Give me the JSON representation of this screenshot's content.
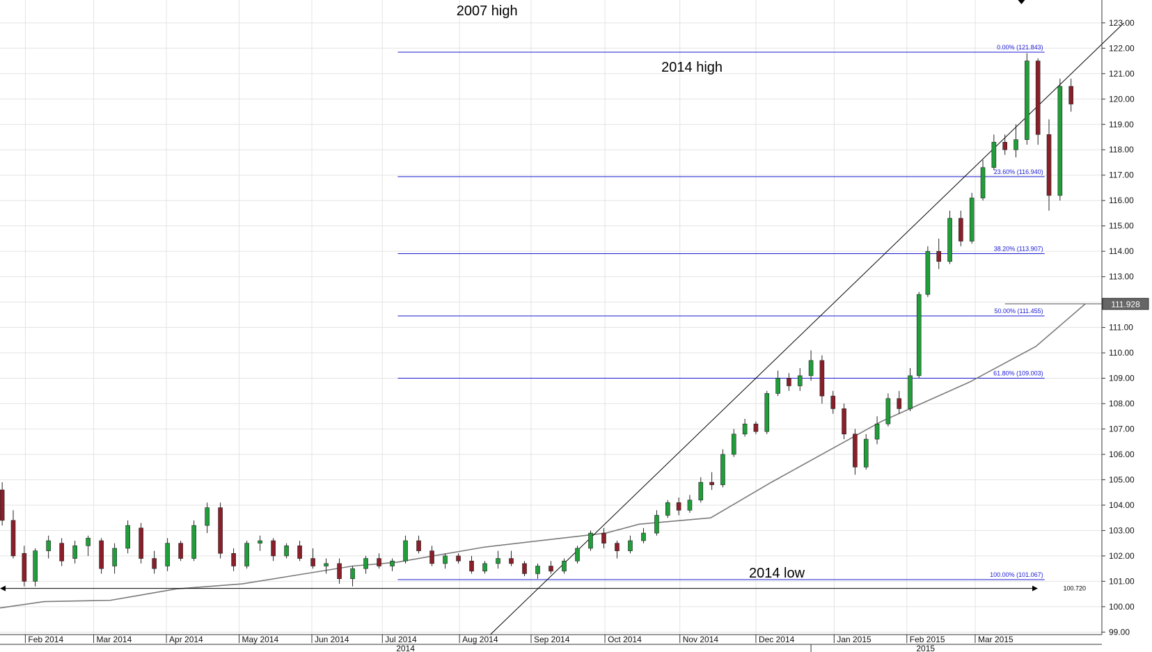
{
  "chart_data": {
    "type": "candlestick",
    "y_axis": {
      "ticks": [
        "99.00",
        "100.00",
        "101.00",
        "102.00",
        "103.00",
        "104.00",
        "105.00",
        "106.00",
        "107.00",
        "108.00",
        "109.00",
        "110.00",
        "111.00",
        "112.00",
        "113.00",
        "114.00",
        "115.00",
        "116.00",
        "117.00",
        "118.00",
        "119.00",
        "120.00",
        "121.00",
        "122.00",
        "123.00"
      ],
      "range": [
        98.9,
        123.9
      ]
    },
    "x_axis": {
      "month_labels": [
        "Feb 2014",
        "Mar 2014",
        "Apr 2014",
        "May 2014",
        "Jun 2014",
        "Jul 2014",
        "Aug 2014",
        "Sep 2014",
        "Oct 2014",
        "Nov 2014",
        "Dec 2014",
        "Jan 2015",
        "Feb 2015",
        "Mar 2015"
      ],
      "year_labels": [
        "2014",
        "2015"
      ]
    },
    "annotations": [
      {
        "id": "high2007",
        "text": "2007 high"
      },
      {
        "id": "high2014",
        "text": "2014 high"
      },
      {
        "id": "low2014",
        "text": "2014 low"
      }
    ],
    "fibonacci": [
      {
        "label": "0.00% (121.843)",
        "value": 121.843
      },
      {
        "label": "23.60% (116.940)",
        "value": 116.94
      },
      {
        "label": "38.20% (113.907)",
        "value": 113.907
      },
      {
        "label": "50.00% (111.455)",
        "value": 111.455
      },
      {
        "label": "61.80% (109.003)",
        "value": 109.003
      },
      {
        "label": "100.00% (101.067)",
        "value": 101.067
      }
    ],
    "support_line": {
      "value": 100.72,
      "label": "100.720"
    },
    "last_price": {
      "value": 111.928,
      "label": "111.928"
    },
    "moving_average": [
      {
        "x": 0,
        "y": 99.95
      },
      {
        "x": 0.04,
        "y": 100.2
      },
      {
        "x": 0.1,
        "y": 100.25
      },
      {
        "x": 0.12,
        "y": 100.4
      },
      {
        "x": 0.16,
        "y": 100.7
      },
      {
        "x": 0.22,
        "y": 100.9
      },
      {
        "x": 0.27,
        "y": 101.25
      },
      {
        "x": 0.32,
        "y": 101.6
      },
      {
        "x": 0.36,
        "y": 101.75
      },
      {
        "x": 0.44,
        "y": 102.35
      },
      {
        "x": 0.5,
        "y": 102.65
      },
      {
        "x": 0.55,
        "y": 102.9
      },
      {
        "x": 0.58,
        "y": 103.25
      },
      {
        "x": 0.645,
        "y": 103.5
      },
      {
        "x": 0.7,
        "y": 104.9
      },
      {
        "x": 0.75,
        "y": 106.1
      },
      {
        "x": 0.8,
        "y": 107.3
      },
      {
        "x": 0.88,
        "y": 108.85
      },
      {
        "x": 0.94,
        "y": 110.25
      },
      {
        "x": 0.985,
        "y": 111.93
      }
    ],
    "trendline": {
      "from": {
        "x": 0.445,
        "y": 98.9
      },
      "to": {
        "x": 1.02,
        "y": 123.0
      }
    },
    "candles": [
      {
        "x": 0.002,
        "o": 104.6,
        "h": 104.9,
        "l": 103.2,
        "c": 103.4
      },
      {
        "x": 0.012,
        "o": 103.4,
        "h": 103.8,
        "l": 101.9,
        "c": 102.0
      },
      {
        "x": 0.022,
        "o": 102.1,
        "h": 102.4,
        "l": 100.8,
        "c": 101.0
      },
      {
        "x": 0.032,
        "o": 101.0,
        "h": 102.3,
        "l": 100.8,
        "c": 102.2
      },
      {
        "x": 0.044,
        "o": 102.2,
        "h": 102.8,
        "l": 101.9,
        "c": 102.6
      },
      {
        "x": 0.056,
        "o": 102.5,
        "h": 102.7,
        "l": 101.6,
        "c": 101.8
      },
      {
        "x": 0.068,
        "o": 101.9,
        "h": 102.6,
        "l": 101.7,
        "c": 102.4
      },
      {
        "x": 0.08,
        "o": 102.4,
        "h": 102.8,
        "l": 102.0,
        "c": 102.7
      },
      {
        "x": 0.092,
        "o": 102.6,
        "h": 102.7,
        "l": 101.3,
        "c": 101.5
      },
      {
        "x": 0.104,
        "o": 101.6,
        "h": 102.5,
        "l": 101.3,
        "c": 102.3
      },
      {
        "x": 0.116,
        "o": 102.3,
        "h": 103.4,
        "l": 102.1,
        "c": 103.2
      },
      {
        "x": 0.128,
        "o": 103.1,
        "h": 103.3,
        "l": 101.7,
        "c": 101.9
      },
      {
        "x": 0.14,
        "o": 101.9,
        "h": 102.2,
        "l": 101.3,
        "c": 101.5
      },
      {
        "x": 0.152,
        "o": 101.6,
        "h": 102.7,
        "l": 101.4,
        "c": 102.5
      },
      {
        "x": 0.164,
        "o": 102.5,
        "h": 102.6,
        "l": 101.8,
        "c": 101.9
      },
      {
        "x": 0.176,
        "o": 101.9,
        "h": 103.4,
        "l": 101.8,
        "c": 103.2
      },
      {
        "x": 0.188,
        "o": 103.2,
        "h": 104.1,
        "l": 102.9,
        "c": 103.9
      },
      {
        "x": 0.2,
        "o": 103.9,
        "h": 104.1,
        "l": 101.9,
        "c": 102.1
      },
      {
        "x": 0.212,
        "o": 102.1,
        "h": 102.3,
        "l": 101.4,
        "c": 101.6
      },
      {
        "x": 0.224,
        "o": 101.6,
        "h": 102.6,
        "l": 101.5,
        "c": 102.5
      },
      {
        "x": 0.236,
        "o": 102.5,
        "h": 102.8,
        "l": 102.2,
        "c": 102.6
      },
      {
        "x": 0.248,
        "o": 102.6,
        "h": 102.7,
        "l": 101.8,
        "c": 102.0
      },
      {
        "x": 0.26,
        "o": 102.0,
        "h": 102.5,
        "l": 101.9,
        "c": 102.4
      },
      {
        "x": 0.272,
        "o": 102.4,
        "h": 102.6,
        "l": 101.8,
        "c": 101.9
      },
      {
        "x": 0.284,
        "o": 101.9,
        "h": 102.3,
        "l": 101.5,
        "c": 101.6
      },
      {
        "x": 0.296,
        "o": 101.6,
        "h": 101.9,
        "l": 101.3,
        "c": 101.7
      },
      {
        "x": 0.308,
        "o": 101.7,
        "h": 101.9,
        "l": 100.9,
        "c": 101.1
      },
      {
        "x": 0.32,
        "o": 101.1,
        "h": 101.6,
        "l": 100.8,
        "c": 101.5
      },
      {
        "x": 0.332,
        "o": 101.5,
        "h": 102.0,
        "l": 101.3,
        "c": 101.9
      },
      {
        "x": 0.344,
        "o": 101.9,
        "h": 102.1,
        "l": 101.5,
        "c": 101.6
      },
      {
        "x": 0.356,
        "o": 101.6,
        "h": 101.9,
        "l": 101.4,
        "c": 101.8
      },
      {
        "x": 0.368,
        "o": 101.8,
        "h": 102.8,
        "l": 101.7,
        "c": 102.6
      },
      {
        "x": 0.38,
        "o": 102.6,
        "h": 102.8,
        "l": 102.1,
        "c": 102.2
      },
      {
        "x": 0.392,
        "o": 102.2,
        "h": 102.4,
        "l": 101.6,
        "c": 101.7
      },
      {
        "x": 0.404,
        "o": 101.7,
        "h": 102.1,
        "l": 101.5,
        "c": 102.0
      },
      {
        "x": 0.416,
        "o": 102.0,
        "h": 102.1,
        "l": 101.7,
        "c": 101.8
      },
      {
        "x": 0.428,
        "o": 101.8,
        "h": 102.0,
        "l": 101.3,
        "c": 101.4
      },
      {
        "x": 0.44,
        "o": 101.4,
        "h": 101.8,
        "l": 101.3,
        "c": 101.7
      },
      {
        "x": 0.452,
        "o": 101.7,
        "h": 102.2,
        "l": 101.5,
        "c": 101.9
      },
      {
        "x": 0.464,
        "o": 101.9,
        "h": 102.2,
        "l": 101.6,
        "c": 101.7
      },
      {
        "x": 0.476,
        "o": 101.7,
        "h": 101.8,
        "l": 101.2,
        "c": 101.3
      },
      {
        "x": 0.488,
        "o": 101.3,
        "h": 101.7,
        "l": 101.1,
        "c": 101.6
      },
      {
        "x": 0.5,
        "o": 101.6,
        "h": 101.8,
        "l": 101.3,
        "c": 101.4
      },
      {
        "x": 0.512,
        "o": 101.4,
        "h": 101.9,
        "l": 101.3,
        "c": 101.8
      },
      {
        "x": 0.524,
        "o": 101.8,
        "h": 102.4,
        "l": 101.7,
        "c": 102.3
      },
      {
        "x": 0.536,
        "o": 102.3,
        "h": 103.0,
        "l": 102.2,
        "c": 102.9
      },
      {
        "x": 0.548,
        "o": 102.9,
        "h": 103.1,
        "l": 102.3,
        "c": 102.5
      },
      {
        "x": 0.56,
        "o": 102.5,
        "h": 102.6,
        "l": 101.9,
        "c": 102.2
      },
      {
        "x": 0.572,
        "o": 102.2,
        "h": 102.8,
        "l": 102.1,
        "c": 102.6
      },
      {
        "x": 0.584,
        "o": 102.6,
        "h": 103.1,
        "l": 102.5,
        "c": 102.9
      },
      {
        "x": 0.596,
        "o": 102.9,
        "h": 103.8,
        "l": 102.8,
        "c": 103.6
      },
      {
        "x": 0.606,
        "o": 103.6,
        "h": 104.2,
        "l": 103.5,
        "c": 104.1
      },
      {
        "x": 0.616,
        "o": 104.1,
        "h": 104.3,
        "l": 103.6,
        "c": 103.8
      },
      {
        "x": 0.626,
        "o": 103.8,
        "h": 104.4,
        "l": 103.7,
        "c": 104.2
      },
      {
        "x": 0.636,
        "o": 104.2,
        "h": 105.1,
        "l": 104.1,
        "c": 104.9
      },
      {
        "x": 0.646,
        "o": 104.9,
        "h": 105.3,
        "l": 104.6,
        "c": 104.8
      },
      {
        "x": 0.656,
        "o": 104.8,
        "h": 106.2,
        "l": 104.7,
        "c": 106.0
      },
      {
        "x": 0.666,
        "o": 106.0,
        "h": 107.0,
        "l": 105.9,
        "c": 106.8
      },
      {
        "x": 0.676,
        "o": 106.8,
        "h": 107.4,
        "l": 106.7,
        "c": 107.2
      },
      {
        "x": 0.686,
        "o": 107.2,
        "h": 107.3,
        "l": 106.8,
        "c": 106.9
      },
      {
        "x": 0.696,
        "o": 106.9,
        "h": 108.5,
        "l": 106.8,
        "c": 108.4
      },
      {
        "x": 0.706,
        "o": 108.4,
        "h": 109.3,
        "l": 108.3,
        "c": 109.0
      },
      {
        "x": 0.716,
        "o": 109.0,
        "h": 109.2,
        "l": 108.5,
        "c": 108.7
      },
      {
        "x": 0.726,
        "o": 108.7,
        "h": 109.4,
        "l": 108.5,
        "c": 109.1
      },
      {
        "x": 0.736,
        "o": 109.1,
        "h": 110.1,
        "l": 108.9,
        "c": 109.7
      },
      {
        "x": 0.746,
        "o": 109.7,
        "h": 109.9,
        "l": 108.0,
        "c": 108.3
      },
      {
        "x": 0.756,
        "o": 108.3,
        "h": 108.5,
        "l": 107.6,
        "c": 107.8
      },
      {
        "x": 0.766,
        "o": 107.8,
        "h": 108.0,
        "l": 106.6,
        "c": 106.8
      },
      {
        "x": 0.776,
        "o": 106.8,
        "h": 107.0,
        "l": 105.2,
        "c": 105.5
      },
      {
        "x": 0.786,
        "o": 105.5,
        "h": 106.8,
        "l": 105.4,
        "c": 106.6
      },
      {
        "x": 0.796,
        "o": 106.6,
        "h": 107.5,
        "l": 106.4,
        "c": 107.2
      },
      {
        "x": 0.806,
        "o": 107.2,
        "h": 108.4,
        "l": 107.1,
        "c": 108.2
      },
      {
        "x": 0.816,
        "o": 108.2,
        "h": 108.5,
        "l": 107.6,
        "c": 107.8
      },
      {
        "x": 0.826,
        "o": 107.8,
        "h": 109.4,
        "l": 107.7,
        "c": 109.1
      },
      {
        "x": 0.834,
        "o": 109.1,
        "h": 112.4,
        "l": 109.0,
        "c": 112.3
      },
      {
        "x": 0.842,
        "o": 112.3,
        "h": 114.2,
        "l": 112.2,
        "c": 114.0
      },
      {
        "x": 0.852,
        "o": 114.0,
        "h": 114.5,
        "l": 113.3,
        "c": 113.6
      },
      {
        "x": 0.862,
        "o": 113.6,
        "h": 115.6,
        "l": 113.5,
        "c": 115.3
      },
      {
        "x": 0.872,
        "o": 115.3,
        "h": 115.6,
        "l": 114.2,
        "c": 114.4
      },
      {
        "x": 0.882,
        "o": 114.4,
        "h": 116.3,
        "l": 114.3,
        "c": 116.1
      },
      {
        "x": 0.892,
        "o": 116.1,
        "h": 117.6,
        "l": 116.0,
        "c": 117.3
      },
      {
        "x": 0.902,
        "o": 117.3,
        "h": 118.6,
        "l": 117.2,
        "c": 118.3
      },
      {
        "x": 0.912,
        "o": 118.3,
        "h": 118.6,
        "l": 117.8,
        "c": 118.0
      },
      {
        "x": 0.922,
        "o": 118.0,
        "h": 119.0,
        "l": 117.7,
        "c": 118.4
      },
      {
        "x": 0.932,
        "o": 118.4,
        "h": 121.8,
        "l": 118.2,
        "c": 121.5
      },
      {
        "x": 0.942,
        "o": 121.5,
        "h": 121.6,
        "l": 118.2,
        "c": 118.6
      },
      {
        "x": 0.952,
        "o": 118.6,
        "h": 119.2,
        "l": 115.6,
        "c": 116.2
      },
      {
        "x": 0.962,
        "o": 116.2,
        "h": 120.8,
        "l": 116.0,
        "c": 120.5
      },
      {
        "x": 0.972,
        "o": 120.5,
        "h": 120.8,
        "l": 119.5,
        "c": 119.8
      }
    ]
  }
}
